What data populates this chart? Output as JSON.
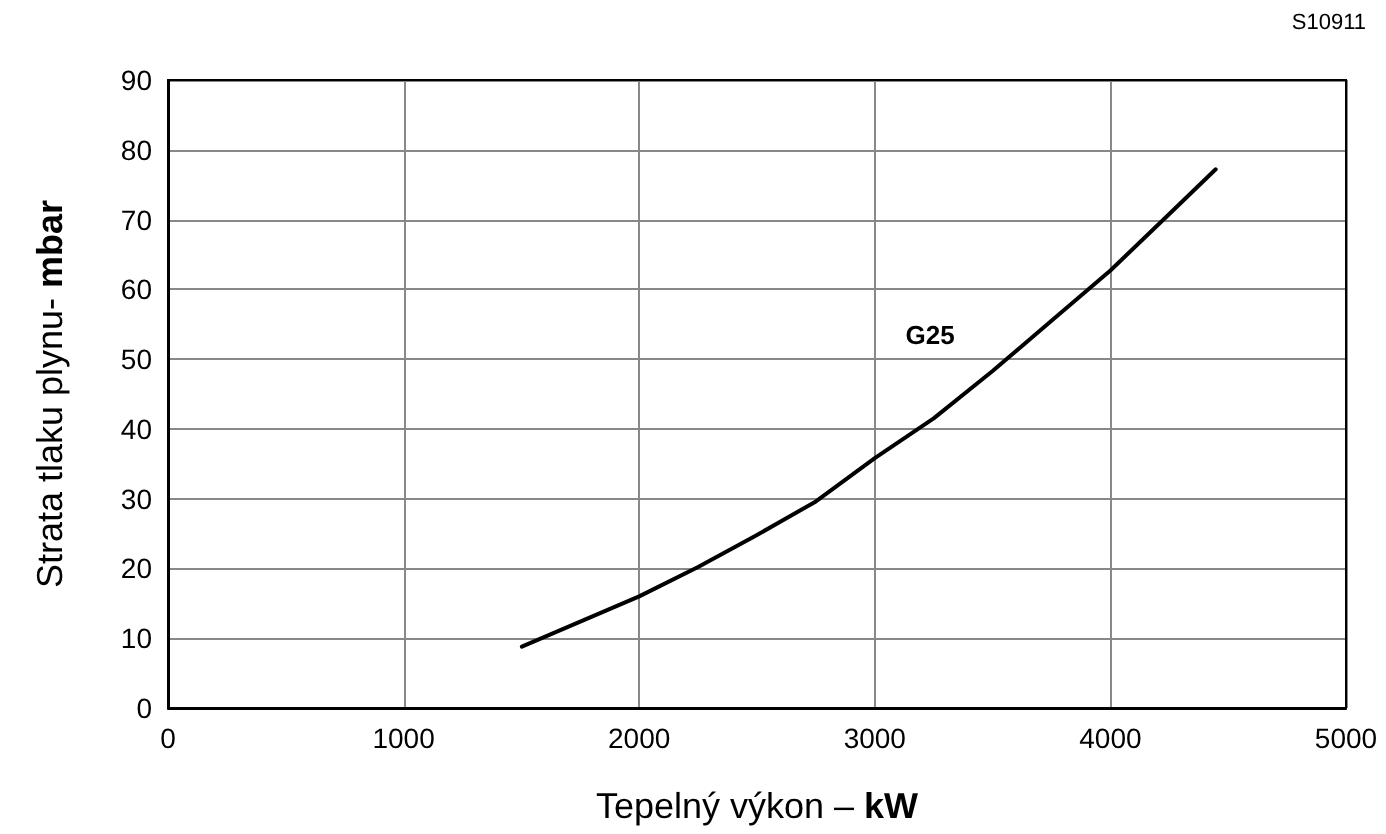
{
  "chart_data": {
    "type": "line",
    "xlabel": "Tepelný výkon – kW",
    "ylabel": "Strata tlaku plynu- mbar",
    "annotations": [
      "S10911"
    ],
    "xlim": [
      0,
      5000
    ],
    "xticks": [
      0,
      1000,
      2000,
      3000,
      4000,
      5000
    ],
    "ylim": [
      0,
      90
    ],
    "yticks": [
      0,
      10,
      20,
      30,
      40,
      50,
      60,
      70,
      80,
      90
    ],
    "grid": true,
    "legend": false,
    "marker": "none",
    "line_style": "solid",
    "series": [
      {
        "name": "G25",
        "color": "#000000",
        "x": [
          1502,
          2000,
          2250,
          2500,
          2750,
          3000,
          3250,
          3500,
          3750,
          4000,
          4250,
          4447
        ],
        "values": [
          8.8,
          16,
          20.2,
          24.8,
          29.6,
          35.8,
          41.5,
          48.3,
          55.5,
          62.7,
          70.8,
          77.2
        ]
      }
    ]
  }
}
